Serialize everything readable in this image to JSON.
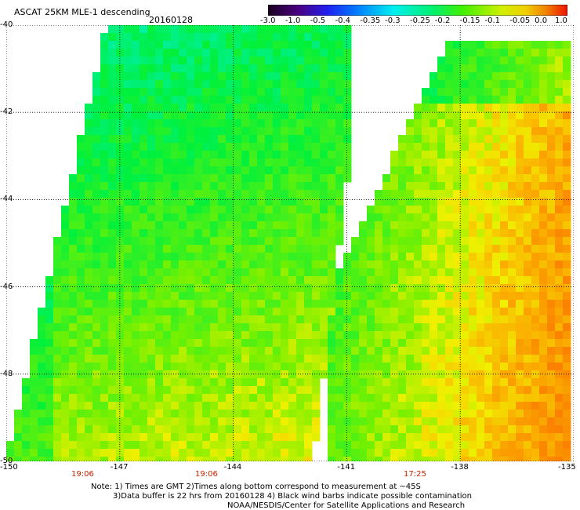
{
  "header": {
    "title": "ASCAT 25KM MLE-1 descending",
    "date": "20160128"
  },
  "colorbar": {
    "labels": [
      "-3.0",
      "-1.0",
      "-0.5",
      "-0.4",
      "-0.35",
      "-0.3",
      "-0.25",
      "-0.2",
      "-0.15",
      "-0.1",
      "-0.05",
      "0.0",
      "1.0"
    ],
    "colors": [
      "#3a0050",
      "#6a00a8",
      "#1010f0",
      "#0060ff",
      "#00b0ff",
      "#00f0f0",
      "#00f0a0",
      "#00e000",
      "#60f000",
      "#c0f000",
      "#f0f000",
      "#f0a000",
      "#f02000"
    ]
  },
  "map": {
    "lat_labels": [
      "-40",
      "-42",
      "-44",
      "-46",
      "-48",
      "-50"
    ],
    "lon_labels": [
      "-150",
      "-147",
      "-144",
      "-141",
      "-138",
      "-135"
    ],
    "time_labels": [
      "19:06",
      "19:06",
      "17:25"
    ]
  },
  "notes": [
    "Note: 1) Times are GMT 2)Times along bottom correspond to measurement at ~45S",
    "3)Data buffer is 22 hrs from 20160128 4) Black wind barbs indicate possible contamination",
    "NOAA/NESDIS/Center for Satellite Applications and Research"
  ]
}
